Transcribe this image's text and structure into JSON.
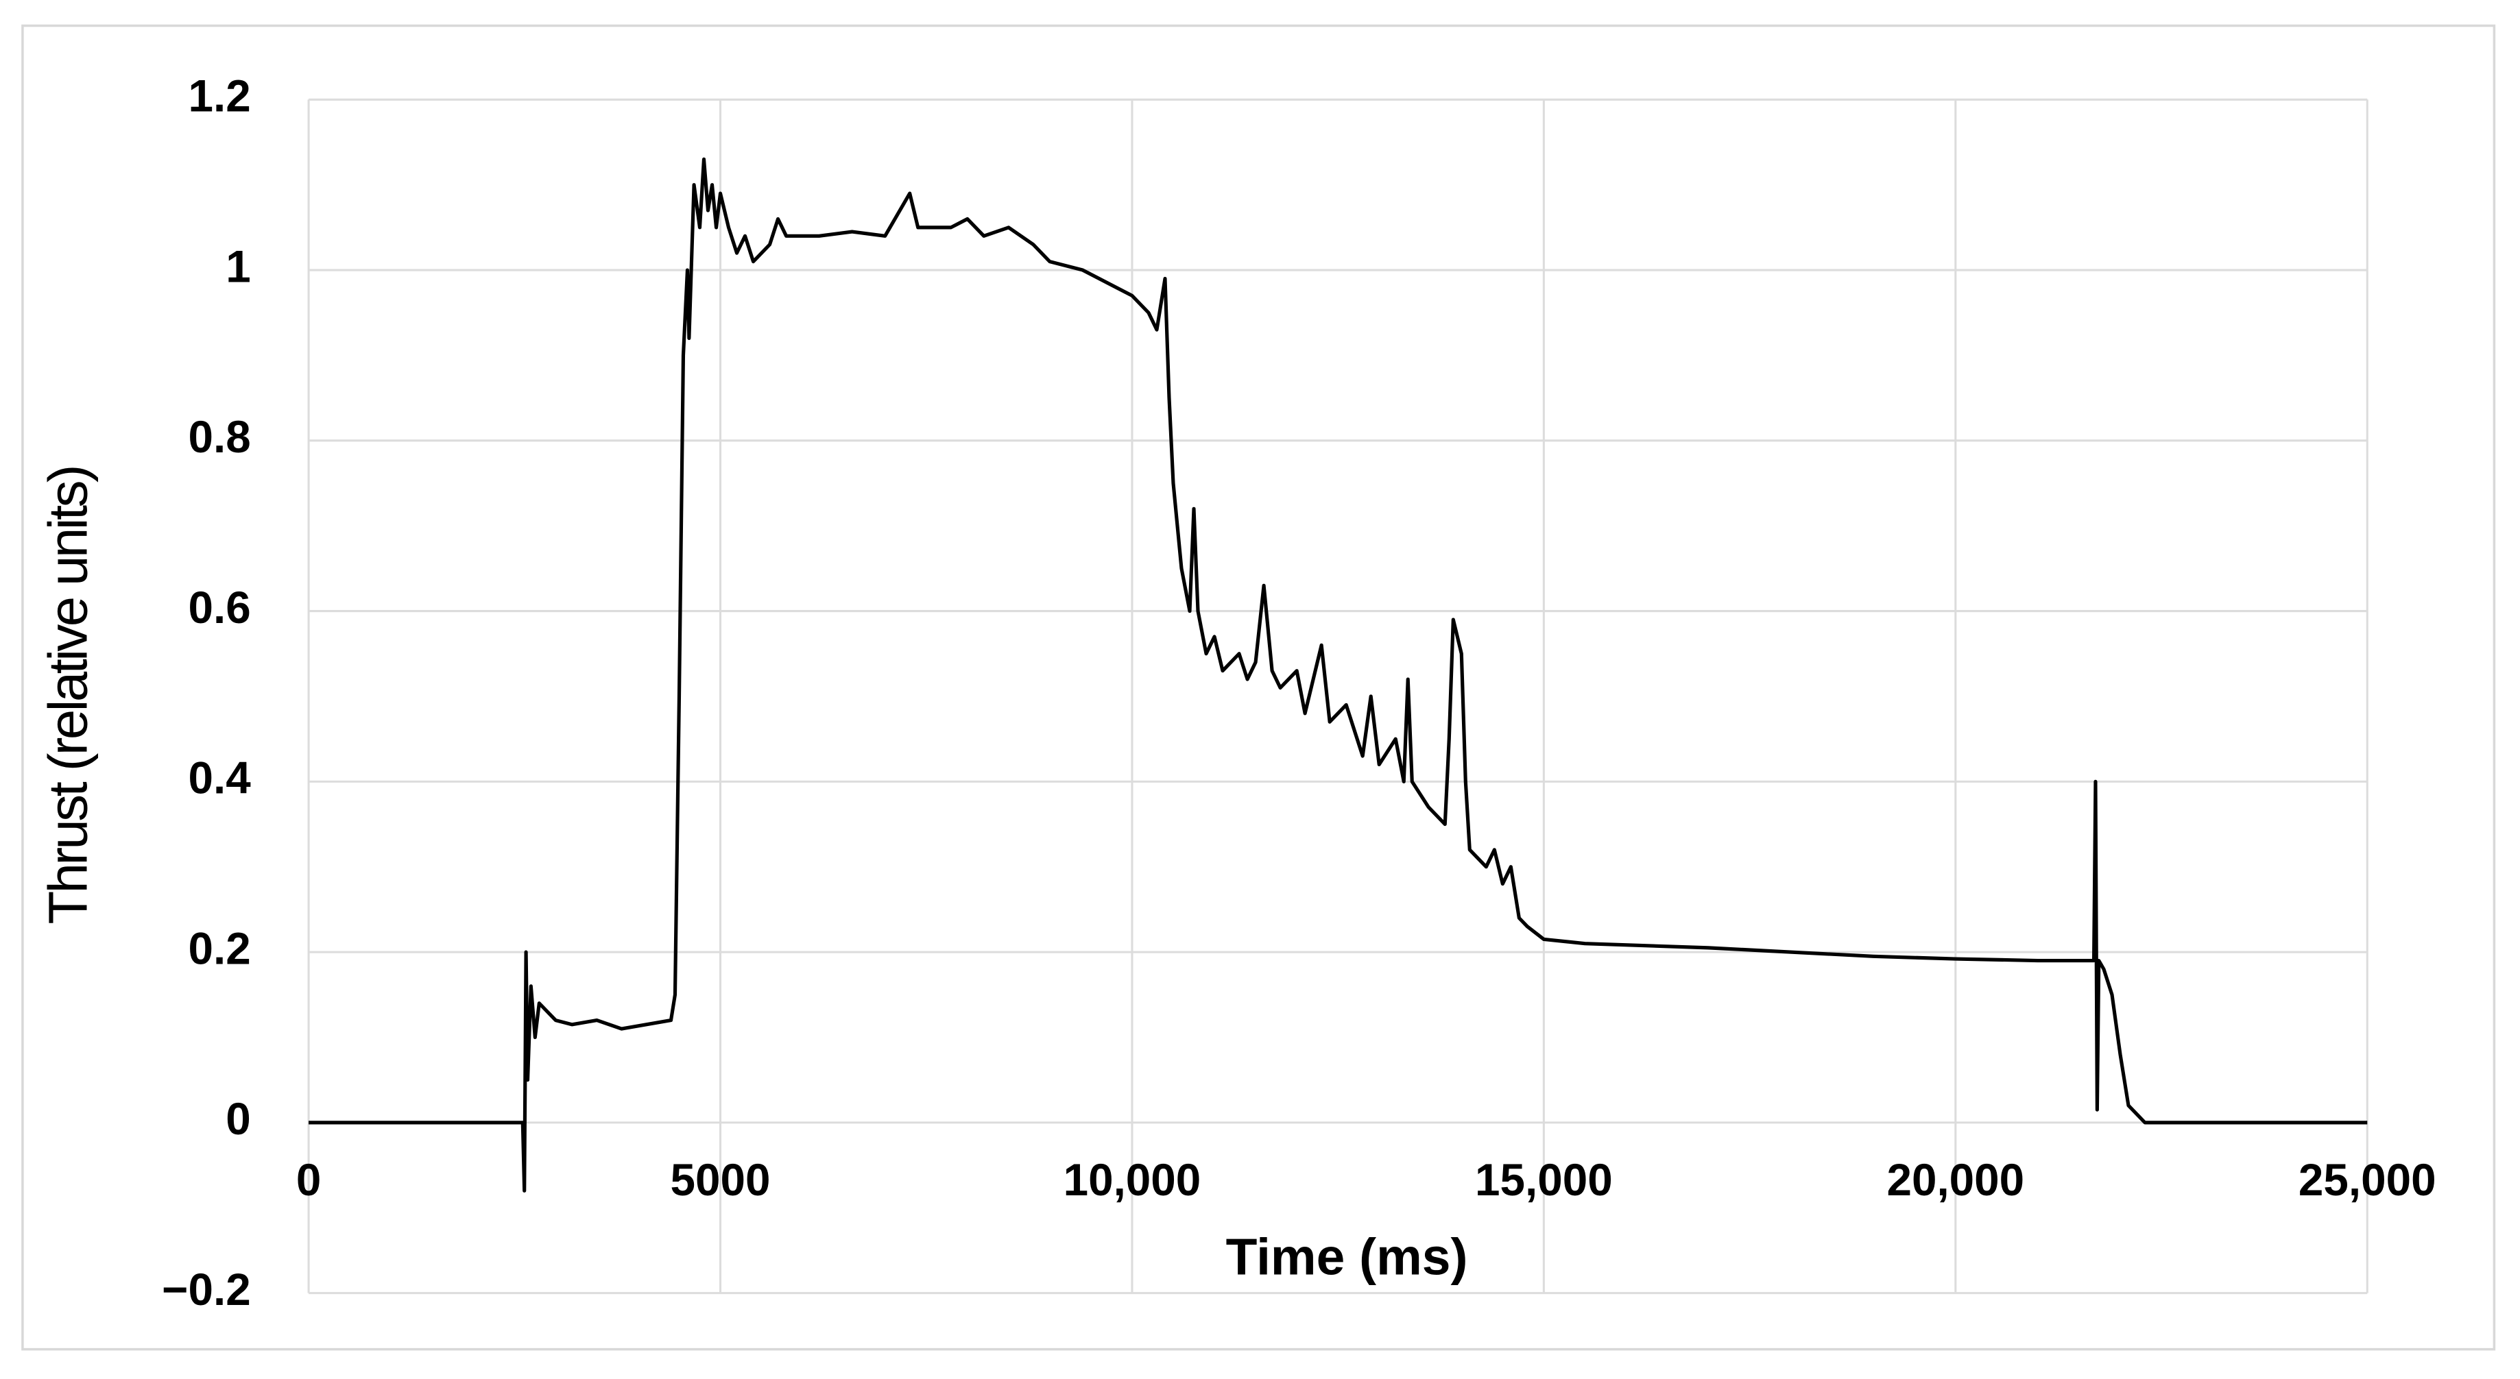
{
  "chart_data": {
    "type": "line",
    "xlabel": "Time (ms)",
    "ylabel": "Thrust (relative units)",
    "x": [
      0,
      2500,
      2600,
      2620,
      2640,
      2660,
      2700,
      2750,
      2800,
      3000,
      3200,
      3500,
      3800,
      4100,
      4400,
      4450,
      4500,
      4550,
      4600,
      4620,
      4680,
      4750,
      4800,
      4850,
      4900,
      4950,
      5000,
      5100,
      5200,
      5300,
      5400,
      5600,
      5700,
      5800,
      6200,
      6600,
      7000,
      7300,
      7400,
      7800,
      8000,
      8200,
      8500,
      8800,
      9000,
      9400,
      9800,
      10000,
      10200,
      10300,
      10400,
      10450,
      10500,
      10600,
      10700,
      10750,
      10800,
      10900,
      11000,
      11100,
      11300,
      11400,
      11500,
      11600,
      11700,
      11800,
      12000,
      12100,
      12300,
      12400,
      12600,
      12800,
      12900,
      13000,
      13200,
      13300,
      13350,
      13400,
      13600,
      13800,
      13850,
      13900,
      14000,
      14050,
      14100,
      14300,
      14400,
      14500,
      14600,
      14700,
      14800,
      15000,
      15500,
      17000,
      19000,
      20000,
      21000,
      21680,
      21700,
      21720,
      21740,
      21800,
      21900,
      22000,
      22100,
      22300,
      25000
    ],
    "values": [
      0,
      0,
      0,
      -0.08,
      0.2,
      0.05,
      0.16,
      0.1,
      0.14,
      0.12,
      0.115,
      0.12,
      0.11,
      0.115,
      0.12,
      0.15,
      0.5,
      0.9,
      1.0,
      0.92,
      1.1,
      1.05,
      1.13,
      1.07,
      1.1,
      1.05,
      1.09,
      1.05,
      1.02,
      1.04,
      1.01,
      1.03,
      1.06,
      1.04,
      1.04,
      1.045,
      1.04,
      1.09,
      1.05,
      1.05,
      1.06,
      1.04,
      1.05,
      1.03,
      1.01,
      1.0,
      0.98,
      0.97,
      0.95,
      0.93,
      0.99,
      0.85,
      0.75,
      0.65,
      0.6,
      0.72,
      0.6,
      0.55,
      0.57,
      0.53,
      0.55,
      0.52,
      0.54,
      0.63,
      0.53,
      0.51,
      0.53,
      0.48,
      0.56,
      0.47,
      0.49,
      0.43,
      0.5,
      0.42,
      0.45,
      0.4,
      0.52,
      0.4,
      0.37,
      0.35,
      0.45,
      0.59,
      0.55,
      0.4,
      0.32,
      0.3,
      0.32,
      0.28,
      0.3,
      0.24,
      0.23,
      0.215,
      0.21,
      0.205,
      0.195,
      0.192,
      0.19,
      0.19,
      0.4,
      0.015,
      0.19,
      0.18,
      0.15,
      0.08,
      0.02,
      0,
      0
    ],
    "color": "#000000",
    "xlim": [
      0,
      25000
    ],
    "xticks": [
      0,
      5000,
      {
        "value": 10000,
        "label": "10,000"
      },
      {
        "value": 15000,
        "label": "15,000"
      },
      {
        "value": 20000,
        "label": "20,000"
      },
      {
        "value": 25000,
        "label": "25,000"
      }
    ],
    "ylim": [
      -0.2,
      1.2
    ],
    "yticks": [
      {
        "value": -0.2,
        "label": "−0.2"
      },
      0,
      0.2,
      0.4,
      0.6,
      0.8,
      1,
      1.2
    ],
    "grid": true
  }
}
